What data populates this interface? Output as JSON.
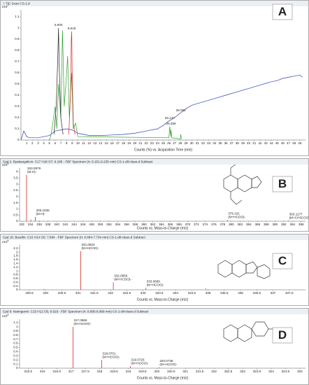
{
  "chart_data": [
    {
      "type": "line",
      "panel_label": "A",
      "title": "+ TIC Scan CS-1.d",
      "scale_label": "x10",
      "scale_exp": "7",
      "xlabel": "Counts (%) vs. Acquisition Time (min)",
      "xlim": [
        0,
        50
      ],
      "xticks": [
        1,
        2,
        3,
        4,
        5,
        6,
        7,
        8,
        9,
        10,
        11,
        12,
        13,
        14,
        15,
        16,
        17,
        18,
        19,
        20,
        21,
        22,
        23,
        24,
        25,
        26,
        27,
        28,
        29,
        30,
        31,
        32,
        33,
        34,
        35,
        36,
        37,
        38,
        39,
        40,
        41,
        42,
        43,
        44,
        45,
        46,
        47,
        48,
        49
      ],
      "ylim": [
        0,
        1.15
      ],
      "yticks": [
        0,
        0.1,
        0.2,
        0.3,
        0.4,
        0.5,
        0.6,
        0.7,
        0.8,
        0.9,
        1,
        1.1
      ],
      "series": [
        {
          "color": "#2b3fb8",
          "x": [
            0,
            0.5,
            1,
            1.5,
            2,
            3,
            4,
            5,
            5.5,
            6,
            7,
            8,
            9,
            10,
            12,
            14,
            16,
            18,
            20,
            22,
            24,
            25,
            26,
            27,
            28,
            29,
            30,
            32,
            34,
            36,
            38,
            40,
            42,
            44,
            45,
            46,
            47,
            48,
            49,
            49.5
          ],
          "values": [
            0,
            0.08,
            0.03,
            0.02,
            0.02,
            0.02,
            0.03,
            0.04,
            0.06,
            0.08,
            0.09,
            0.1,
            0.09,
            0.06,
            0.04,
            0.04,
            0.045,
            0.05,
            0.06,
            0.08,
            0.1,
            0.13,
            0.17,
            0.2,
            0.24,
            0.28,
            0.31,
            0.34,
            0.37,
            0.4,
            0.43,
            0.46,
            0.49,
            0.52,
            0.53,
            0.55,
            0.56,
            0.57,
            0.58,
            0.56
          ]
        },
        {
          "color": "#2ca02c",
          "x": [
            5,
            5.3,
            5.6,
            6,
            6.3,
            6.6,
            7,
            7.3,
            7.6,
            7.9,
            8.2,
            8.5,
            8.9,
            9.2,
            9.6,
            10,
            26,
            26.15,
            26.3,
            26.36,
            26.5,
            28,
            28.09,
            28.2
          ],
          "values": [
            0,
            0.05,
            0.15,
            0.3,
            0.1,
            0.5,
            0.2,
            0.98,
            0.3,
            0.5,
            0.75,
            0.2,
            0.6,
            0.1,
            0.15,
            0.03,
            0.02,
            0.12,
            0.03,
            0.09,
            0.02,
            0.01,
            0.05,
            0.01
          ]
        },
        {
          "color": "#222222",
          "x": [
            5.8,
            6.2,
            6.5,
            6.6,
            6.7,
            7,
            7.4
          ],
          "values": [
            0.05,
            0.3,
            0.8,
            1.0,
            0.7,
            0.2,
            0.05
          ]
        },
        {
          "color": "#d62728",
          "x": [
            8.4,
            8.7,
            8.85,
            8.92,
            9.0,
            9.2,
            9.5
          ],
          "values": [
            0.05,
            0.4,
            0.9,
            0.97,
            0.6,
            0.15,
            0.05
          ]
        }
      ],
      "annotations": [
        {
          "value": 6.6,
          "label": "6.600"
        },
        {
          "value": 8.916,
          "label": "8.916"
        },
        {
          "value": 26.147,
          "label": "26.147"
        },
        {
          "value": 26.359,
          "label": "26.359"
        },
        {
          "value": 28.092,
          "label": "28.092"
        }
      ]
    },
    {
      "type": "spectrum",
      "panel_label": "B",
      "title": "Cpd 2: Byakangelicin: C17 H18 O7; 9.185 - FBF Spectrum (rt: 9.151-9.235 min) CS-1-dil-clean.d  Subtract",
      "scale_label": "x10",
      "scale_exp": "5",
      "xlabel": "Counts vs. Mass-to-Charge (m/z)",
      "xlim": [
        331.5,
        397
      ],
      "xticks": [
        332,
        334,
        336,
        338,
        340,
        342,
        344,
        346,
        348,
        350,
        352,
        354,
        356,
        358,
        360,
        362,
        364,
        366,
        368,
        370,
        372,
        374,
        376,
        378,
        380,
        382,
        384,
        386,
        388,
        390,
        392,
        394,
        396
      ],
      "ylim": [
        0,
        4.2
      ],
      "yticks": [
        0,
        0.5,
        1,
        1.5,
        2,
        2.5,
        3,
        3.5,
        4
      ],
      "color": "#d62728",
      "peaks": {
        "x": [
          333.0979,
          335.1036,
          379.101,
          393.1177
        ],
        "values": [
          3.75,
          0.35,
          0.1,
          0.05
        ],
        "adducts": [
          "(M-H)-",
          "(M-H)-",
          "(M+HCOO)-",
          "(M+CH3COO)-"
        ]
      },
      "minor": {
        "x": [
          334.1,
          336.1
        ],
        "values": [
          0.15,
          0.05
        ]
      }
    },
    {
      "type": "spectrum",
      "panel_label": "C",
      "title": "Cpd 16: Brazilin: C16 H14 O5; 7.684 - FBF Spectrum (rt: 6.684-7.734 min) CS-1-dil-clean.d  Subtract",
      "scale_label": "x10",
      "scale_exp": "5",
      "xlabel": "Counts vs. Mass-to-Charge (m/z)",
      "xlim": [
        329.2,
        338
      ],
      "xticks": [
        329.5,
        330,
        330.5,
        331,
        331.5,
        332,
        332.5,
        333,
        333.5,
        334,
        334.5,
        335,
        335.5,
        336,
        336.5,
        337,
        337.5
      ],
      "ylim": [
        0,
        2.3
      ],
      "yticks": [
        0,
        0.2,
        0.4,
        0.6,
        0.8,
        1,
        1.2,
        1.4,
        1.6,
        1.8,
        2,
        2.2
      ],
      "color": "#d62728",
      "peaks": {
        "x": [
          331.0822,
          332.0856,
          333.0869
        ],
        "values": [
          2.05,
          0.4,
          0.1
        ],
        "adducts": [
          "(M+HCOO)-",
          "(M+HCOO)-",
          "(M+HCOO)-"
        ]
      },
      "minor": {
        "x": [
          329.95,
          334.93
        ],
        "values": [
          0.05,
          0.08
        ]
      }
    },
    {
      "type": "spectrum",
      "panel_label": "D",
      "title": "Cpd 9: Naringenin: C15 H12 O5; 8.918 - FBF Spectrum (rt: 8.885-8.968 min) CS-1-dil-clean.d  Subtract",
      "scale_label": "x10",
      "scale_exp": "5",
      "xlabel": "Counts vs. Mass-to-Charge (m/z)",
      "xlim": [
        315.2,
        325.2
      ],
      "xticks": [
        315.5,
        316,
        316.5,
        317,
        317.5,
        318,
        318.5,
        319,
        319.5,
        320,
        320.5,
        321,
        321.5,
        322,
        322.5,
        323,
        323.5,
        324,
        324.5,
        325
      ],
      "ylim": [
        0,
        1.15
      ],
      "yticks": [
        0,
        0.1,
        0.2,
        0.3,
        0.4,
        0.5,
        0.6,
        0.7,
        0.8,
        0.9,
        1,
        1.1
      ],
      "color": "#d62728",
      "peaks": {
        "x": [
          317.0666,
          318.0701,
          319.0725,
          320.0736
        ],
        "values": [
          1.0,
          0.2,
          0.05,
          0.02
        ],
        "adducts": [
          "(M+HCOO)-",
          "(M+HCOO)-",
          "(M+HCOO)-",
          "(M+HCOO)-"
        ]
      },
      "minor": {
        "x": [],
        "values": []
      }
    }
  ]
}
